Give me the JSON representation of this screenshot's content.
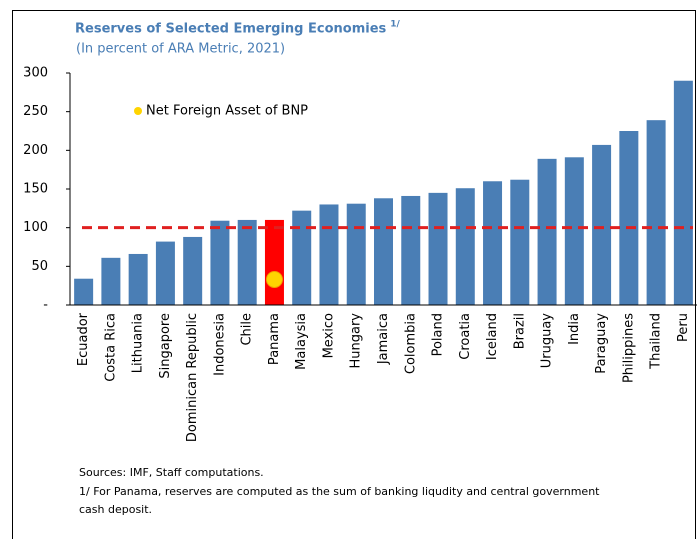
{
  "chart_data": {
    "type": "bar",
    "title": "Reserves of Selected Emerging Economies",
    "title_note": "1/",
    "subtitle": "(In percent of ARA Metric, 2021)",
    "categories": [
      "Ecuador",
      "Costa Rica",
      "Lithuania",
      "Singapore",
      "Dominican Republic",
      "Indonesia",
      "Chile",
      "Panama",
      "Malaysia",
      "Mexico",
      "Hungary",
      "Jamaica",
      "Colombia",
      "Poland",
      "Croatia",
      "Iceland",
      "Brazil",
      "Uruguay",
      "India",
      "Paraguay",
      "Philippines",
      "Thailand",
      "Peru"
    ],
    "values": [
      34,
      61,
      66,
      82,
      88,
      109,
      110,
      110,
      122,
      130,
      131,
      138,
      141,
      145,
      151,
      160,
      162,
      189,
      191,
      207,
      225,
      239,
      290
    ],
    "colors": [
      "#4a7eb5",
      "#4a7eb5",
      "#4a7eb5",
      "#4a7eb5",
      "#4a7eb5",
      "#4a7eb5",
      "#4a7eb5",
      "#ff0000",
      "#4a7eb5",
      "#4a7eb5",
      "#4a7eb5",
      "#4a7eb5",
      "#4a7eb5",
      "#4a7eb5",
      "#4a7eb5",
      "#4a7eb5",
      "#4a7eb5",
      "#4a7eb5",
      "#4a7eb5",
      "#4a7eb5",
      "#4a7eb5",
      "#4a7eb5",
      "#4a7eb5"
    ],
    "markers": {
      "name": "Net Foreign Asset of BNP",
      "color": "#ffd400",
      "values": [
        null,
        null,
        null,
        null,
        null,
        null,
        null,
        33,
        null,
        null,
        null,
        null,
        null,
        null,
        null,
        null,
        null,
        null,
        null,
        null,
        null,
        null,
        null
      ]
    },
    "reference_line": {
      "value": 100,
      "color": "#e02020"
    },
    "ylim": [
      0,
      300
    ],
    "yticks": [
      {
        "value": 0,
        "label": "-"
      },
      50,
      100,
      150,
      200,
      250,
      300
    ],
    "notes": [
      "Sources: IMF, Staff computations.",
      "1/  For Panama, reserves are computed as the sum of banking liqudity and central government",
      "cash deposit."
    ]
  }
}
